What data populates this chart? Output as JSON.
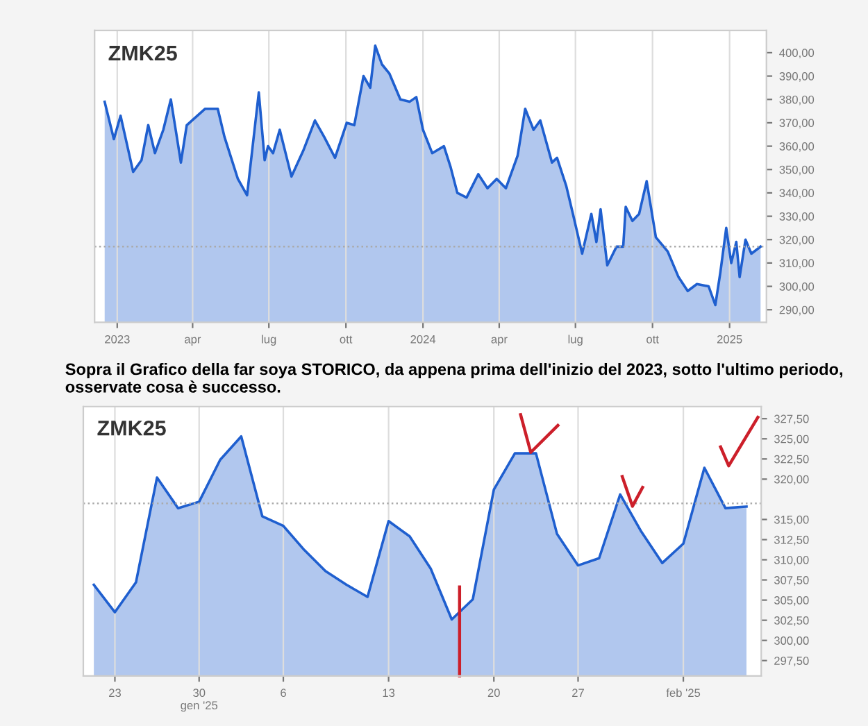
{
  "chart_data": [
    {
      "type": "area",
      "title": "ZMK25",
      "grid": "x",
      "color": "#1f5fcf",
      "x": [
        "2022-12-17",
        "2022-12-28",
        "2023-01-05",
        "2023-01-20",
        "2023-01-30",
        "2023-02-07",
        "2023-02-15",
        "2023-02-25",
        "2023-03-06",
        "2023-03-18",
        "2023-03-25",
        "2023-04-16",
        "2023-05-01",
        "2023-05-09",
        "2023-05-25",
        "2023-06-05",
        "2023-06-19",
        "2023-06-26",
        "2023-06-30",
        "2023-07-06",
        "2023-07-14",
        "2023-07-28",
        "2023-08-11",
        "2023-08-25",
        "2023-09-05",
        "2023-09-18",
        "2023-10-02",
        "2023-10-11",
        "2023-10-22",
        "2023-10-30",
        "2023-11-05",
        "2023-11-13",
        "2023-11-22",
        "2023-12-05",
        "2023-12-16",
        "2023-12-24",
        "2024-01-01",
        "2024-01-12",
        "2024-01-26",
        "2024-02-03",
        "2024-02-11",
        "2024-02-22",
        "2024-03-07",
        "2024-03-18",
        "2024-03-29",
        "2024-04-09",
        "2024-04-23",
        "2024-05-02",
        "2024-05-12",
        "2024-05-20",
        "2024-06-03",
        "2024-06-09",
        "2024-06-20",
        "2024-06-28",
        "2024-07-09",
        "2024-07-20",
        "2024-07-26",
        "2024-07-31",
        "2024-08-08",
        "2024-08-19",
        "2024-08-27",
        "2024-08-30",
        "2024-09-07",
        "2024-09-15",
        "2024-09-24",
        "2024-10-05",
        "2024-10-19",
        "2024-11-01",
        "2024-11-12",
        "2024-11-23",
        "2024-12-07",
        "2024-12-15",
        "2024-12-21",
        "2024-12-28",
        "2025-01-03",
        "2025-01-09",
        "2025-01-13",
        "2025-01-20",
        "2025-01-27",
        "2025-02-07"
      ],
      "values": [
        379,
        363,
        373,
        349,
        354,
        369,
        357,
        367,
        380,
        353,
        369,
        376,
        376,
        364,
        346,
        339,
        383,
        354,
        360,
        357,
        367,
        347,
        358,
        371,
        364,
        355,
        370,
        369,
        390,
        385,
        403,
        395,
        391,
        380,
        379,
        381,
        367,
        357,
        360,
        351,
        340,
        338,
        348,
        342,
        346,
        342,
        356,
        376,
        367,
        371,
        353,
        355,
        343,
        331,
        314,
        331,
        319,
        333,
        309,
        317,
        317,
        334,
        328,
        331,
        345,
        321,
        315,
        304,
        298,
        301,
        300,
        292,
        306,
        325,
        310,
        319,
        304,
        320,
        314,
        317
      ],
      "xlim": [
        "2022-12-05",
        "2025-02-14"
      ],
      "ylim": [
        284.6,
        409.5
      ],
      "xticks": [
        {
          "value": "2023-01-01",
          "label": "2023"
        },
        {
          "value": "2023-04-01",
          "label": "apr"
        },
        {
          "value": "2023-07-01",
          "label": "lug"
        },
        {
          "value": "2023-10-01",
          "label": "ott"
        },
        {
          "value": "2024-01-01",
          "label": "2024"
        },
        {
          "value": "2024-04-01",
          "label": "apr"
        },
        {
          "value": "2024-07-01",
          "label": "lug"
        },
        {
          "value": "2024-10-01",
          "label": "ott"
        },
        {
          "value": "2025-01-01",
          "label": "2025"
        }
      ],
      "yticks": [
        {
          "value": 400,
          "label": "400,00"
        },
        {
          "value": 390,
          "label": "390,00"
        },
        {
          "value": 380,
          "label": "380,00"
        },
        {
          "value": 370,
          "label": "370,00"
        },
        {
          "value": 360,
          "label": "360,00"
        },
        {
          "value": 350,
          "label": "350,00"
        },
        {
          "value": 340,
          "label": "340,00"
        },
        {
          "value": 330,
          "label": "330,00"
        },
        {
          "value": 320,
          "label": "320,00"
        },
        {
          "value": 310,
          "label": "310,00"
        },
        {
          "value": 300,
          "label": "300,00"
        },
        {
          "value": 290,
          "label": "290,00"
        }
      ],
      "ref_lines": [
        {
          "axis": "y",
          "value": 317,
          "color": "#aaaaaa",
          "line_style": "dotted"
        }
      ],
      "annotations": [
        "Sopra il Grafico della far soya STORICO, da appena prima dell'inizio del 2023, sotto l'ultimo periodo, osservate cosa è successo."
      ]
    },
    {
      "type": "area",
      "title": "ZMK25",
      "grid": "x",
      "color": "#1f5fcf",
      "categories": [
        null,
        "23",
        null,
        null,
        null,
        "30\ngen '25",
        null,
        null,
        null,
        "6",
        null,
        null,
        null,
        null,
        "13",
        null,
        null,
        null,
        null,
        "20",
        null,
        null,
        null,
        "27",
        null,
        null,
        null,
        null,
        "feb '25",
        null,
        null,
        null
      ],
      "values": [
        306.9,
        303.5,
        307.2,
        320.2,
        316.4,
        317.2,
        322.4,
        325.3,
        315.4,
        314.2,
        311.2,
        308.6,
        306.9,
        305.4,
        314.8,
        312.9,
        308.9,
        302.6,
        305.1,
        318.7,
        323.2,
        323.2,
        313.2,
        309.3,
        310.2,
        318.1,
        313.5,
        309.6,
        312.0,
        321.4,
        316.4,
        316.6
      ],
      "ylim": [
        295.6,
        329.0
      ],
      "yticks": [
        {
          "value": 327.5,
          "label": "327,50"
        },
        {
          "value": 325,
          "label": "325,00"
        },
        {
          "value": 322.5,
          "label": "322,50"
        },
        {
          "value": 320,
          "label": "320,00"
        },
        {
          "value": 315,
          "label": "315,00"
        },
        {
          "value": 312.5,
          "label": "312,50"
        },
        {
          "value": 310,
          "label": "310,00"
        },
        {
          "value": 307.5,
          "label": "307,50"
        },
        {
          "value": 305,
          "label": "305,00"
        },
        {
          "value": 302.5,
          "label": "302,50"
        },
        {
          "value": 300,
          "label": "300,00"
        },
        {
          "value": 297.5,
          "label": "297,50"
        }
      ],
      "ref_lines": [
        {
          "axis": "y",
          "value": 317,
          "color": "#aaaaaa",
          "line_style": "dotted"
        }
      ]
    }
  ]
}
